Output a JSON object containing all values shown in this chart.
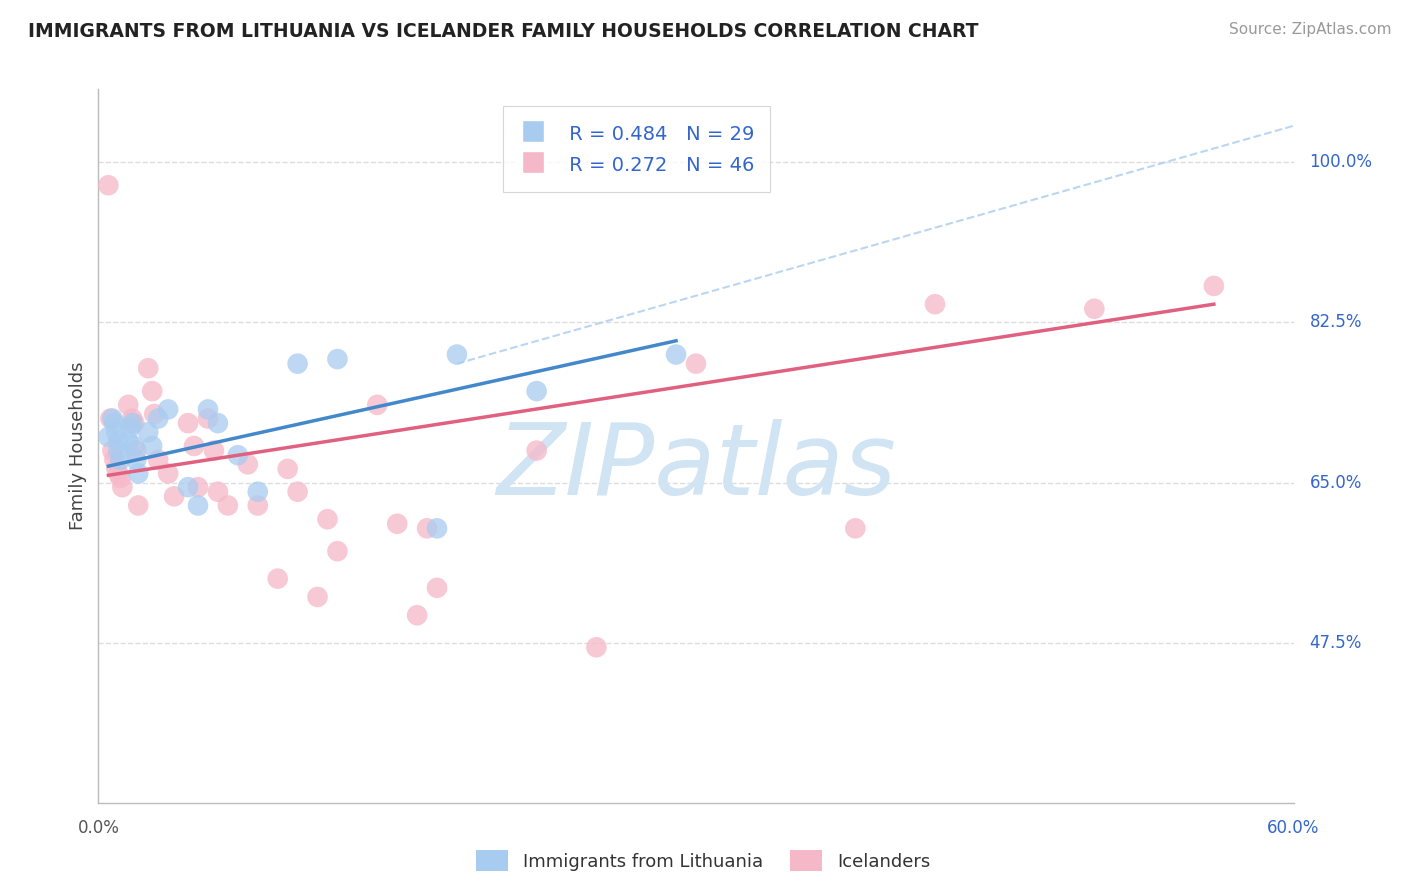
{
  "title": "IMMIGRANTS FROM LITHUANIA VS ICELANDER FAMILY HOUSEHOLDS CORRELATION CHART",
  "source": "Source: ZipAtlas.com",
  "xlabel_bottom_left": "0.0%",
  "xlabel_bottom_right": "60.0%",
  "ylabel": "Family Households",
  "ylabel_right_labels": [
    "100.0%",
    "82.5%",
    "65.0%",
    "47.5%"
  ],
  "ylabel_right_values": [
    1.0,
    0.825,
    0.65,
    0.475
  ],
  "x_min": 0.0,
  "x_max": 0.6,
  "y_min": 0.3,
  "y_max": 1.08,
  "blue_label": "Immigrants from Lithuania",
  "pink_label": "Icelanders",
  "blue_R": 0.484,
  "blue_N": 29,
  "pink_R": 0.272,
  "pink_N": 46,
  "blue_color": "#A8CCF0",
  "pink_color": "#F5B8C8",
  "blue_line_color": "#4488CC",
  "pink_line_color": "#E06080",
  "title_color": "#222222",
  "source_color": "#999999",
  "legend_text_color": "#3366CC",
  "grid_color": "#DDDDDD",
  "watermark_color": "#D0E4F4",
  "blue_dots_x": [
    0.005,
    0.007,
    0.008,
    0.009,
    0.01,
    0.01,
    0.011,
    0.015,
    0.016,
    0.017,
    0.018,
    0.019,
    0.02,
    0.025,
    0.027,
    0.03,
    0.035,
    0.045,
    0.05,
    0.055,
    0.06,
    0.07,
    0.08,
    0.1,
    0.12,
    0.17,
    0.18,
    0.22,
    0.29
  ],
  "blue_dots_y": [
    0.7,
    0.72,
    0.715,
    0.705,
    0.695,
    0.685,
    0.675,
    0.695,
    0.71,
    0.715,
    0.69,
    0.675,
    0.66,
    0.705,
    0.69,
    0.72,
    0.73,
    0.645,
    0.625,
    0.73,
    0.715,
    0.68,
    0.64,
    0.78,
    0.785,
    0.6,
    0.79,
    0.75,
    0.79
  ],
  "pink_dots_x": [
    0.005,
    0.006,
    0.007,
    0.008,
    0.009,
    0.01,
    0.011,
    0.012,
    0.015,
    0.017,
    0.018,
    0.019,
    0.02,
    0.025,
    0.027,
    0.028,
    0.03,
    0.035,
    0.038,
    0.045,
    0.048,
    0.05,
    0.055,
    0.058,
    0.06,
    0.065,
    0.075,
    0.08,
    0.09,
    0.095,
    0.1,
    0.11,
    0.115,
    0.12,
    0.14,
    0.15,
    0.16,
    0.165,
    0.17,
    0.22,
    0.25,
    0.3,
    0.38,
    0.42,
    0.5,
    0.56
  ],
  "pink_dots_y": [
    0.975,
    0.72,
    0.685,
    0.675,
    0.665,
    0.66,
    0.655,
    0.645,
    0.735,
    0.72,
    0.715,
    0.685,
    0.625,
    0.775,
    0.75,
    0.725,
    0.675,
    0.66,
    0.635,
    0.715,
    0.69,
    0.645,
    0.72,
    0.685,
    0.64,
    0.625,
    0.67,
    0.625,
    0.545,
    0.665,
    0.64,
    0.525,
    0.61,
    0.575,
    0.735,
    0.605,
    0.505,
    0.6,
    0.535,
    0.685,
    0.47,
    0.78,
    0.6,
    0.845,
    0.84,
    0.865
  ],
  "blue_trend_x": [
    0.005,
    0.29
  ],
  "blue_trend_y": [
    0.668,
    0.805
  ],
  "pink_trend_x": [
    0.005,
    0.56
  ],
  "pink_trend_y": [
    0.658,
    0.845
  ],
  "ref_line_x": [
    0.18,
    0.6
  ],
  "ref_line_y": [
    0.78,
    1.04
  ]
}
